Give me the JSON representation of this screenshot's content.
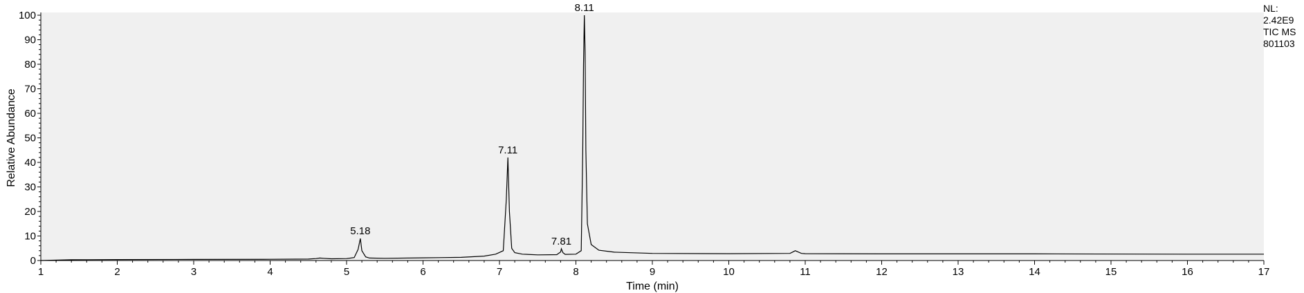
{
  "chart_data": {
    "type": "line",
    "title": "",
    "xlabel": "Time (min)",
    "ylabel": "Relative Abundance",
    "xlim": [
      1,
      17
    ],
    "ylim": [
      0,
      100
    ],
    "x_ticks": [
      1,
      2,
      3,
      4,
      5,
      6,
      7,
      8,
      9,
      10,
      11,
      12,
      13,
      14,
      15,
      16,
      17
    ],
    "y_ticks": [
      0,
      10,
      20,
      30,
      40,
      50,
      60,
      70,
      80,
      90,
      100
    ],
    "grid": false,
    "plot_background": "#f0f0f0",
    "line_color": "#000000",
    "series": [
      {
        "x": [
          1.0,
          1.4,
          2.0,
          3.0,
          4.0,
          4.5,
          4.6,
          4.65,
          4.7,
          4.8,
          5.0,
          5.1,
          5.15,
          5.18,
          5.2,
          5.25,
          5.3,
          5.5,
          6.0,
          6.5,
          6.8,
          6.95,
          7.05,
          7.09,
          7.11,
          7.13,
          7.16,
          7.2,
          7.3,
          7.5,
          7.75,
          7.8,
          7.81,
          7.83,
          7.86,
          8.0,
          8.07,
          8.09,
          8.1,
          8.11,
          8.12,
          8.13,
          8.15,
          8.2,
          8.3,
          8.5,
          9.0,
          10.0,
          10.8,
          10.87,
          10.95,
          11.0,
          12.0,
          14.0,
          16.0,
          17.0
        ],
        "y": [
          0.0,
          0.3,
          0.4,
          0.45,
          0.5,
          0.6,
          0.8,
          1.0,
          0.9,
          0.7,
          0.8,
          1.2,
          4.5,
          9.0,
          4.0,
          1.5,
          1.0,
          0.9,
          1.1,
          1.3,
          1.8,
          2.6,
          4.0,
          25.0,
          42.0,
          20.0,
          5.0,
          3.2,
          2.6,
          2.3,
          2.4,
          3.5,
          4.8,
          3.2,
          2.5,
          2.6,
          4.0,
          45.0,
          80.0,
          100.0,
          85.0,
          45.0,
          15.0,
          6.5,
          4.2,
          3.4,
          2.9,
          2.8,
          2.9,
          4.0,
          2.9,
          2.8,
          2.7,
          2.7,
          2.6,
          2.6
        ]
      }
    ],
    "annotations": [
      {
        "x": 5.18,
        "y": 9.0,
        "text": "5.18"
      },
      {
        "x": 7.11,
        "y": 42.0,
        "text": "7.11"
      },
      {
        "x": 7.81,
        "y": 4.8,
        "text": "7.81"
      },
      {
        "x": 8.11,
        "y": 100.0,
        "text": "8.11"
      }
    ]
  },
  "info": {
    "nl_label": "NL:",
    "nl_value": "2.42E9",
    "trace": "TIC  MS",
    "sample": "801103"
  }
}
